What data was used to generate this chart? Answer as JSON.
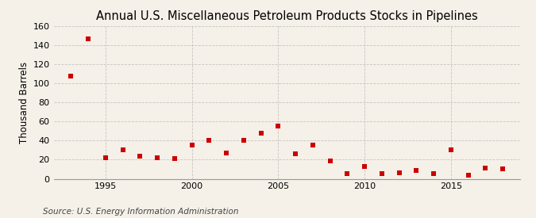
{
  "title": "Annual U.S. Miscellaneous Petroleum Products Stocks in Pipelines",
  "ylabel": "Thousand Barrels",
  "source": "Source: U.S. Energy Information Administration",
  "years": [
    1993,
    1994,
    1995,
    1996,
    1997,
    1998,
    1999,
    2000,
    2001,
    2002,
    2003,
    2004,
    2005,
    2006,
    2007,
    2008,
    2009,
    2010,
    2011,
    2012,
    2013,
    2014,
    2015,
    2016,
    2017,
    2018
  ],
  "values": [
    108,
    147,
    22,
    30,
    24,
    22,
    21,
    35,
    40,
    27,
    40,
    48,
    55,
    26,
    35,
    19,
    5,
    13,
    5,
    6,
    9,
    5,
    30,
    4,
    11,
    10
  ],
  "marker_color": "#cc0000",
  "marker_size": 5,
  "background_color": "#f5f0e8",
  "grid_color": "#bbbbbb",
  "ylim": [
    0,
    160
  ],
  "yticks": [
    0,
    20,
    40,
    60,
    80,
    100,
    120,
    140,
    160
  ],
  "xticks": [
    1995,
    2000,
    2005,
    2010,
    2015
  ],
  "xlim": [
    1992,
    2019
  ],
  "title_fontsize": 10.5,
  "ylabel_fontsize": 8.5,
  "tick_fontsize": 8,
  "source_fontsize": 7.5
}
